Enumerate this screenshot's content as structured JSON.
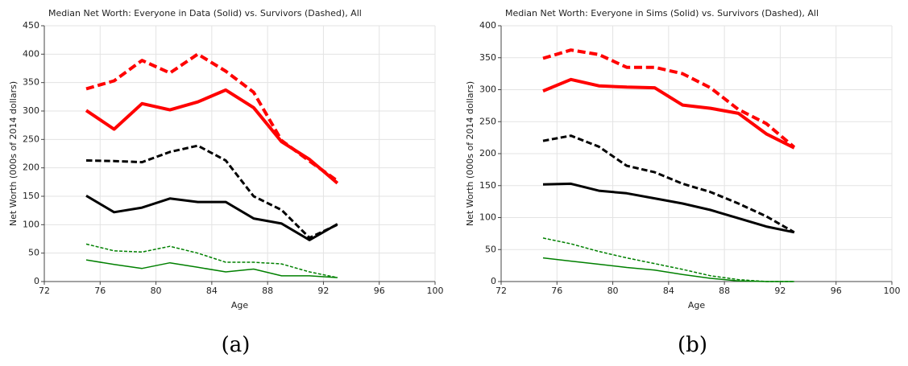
{
  "chart_data": [
    {
      "type": "line",
      "title": "Median Net Worth: Everyone in Data (Solid) vs. Survivors (Dashed), All",
      "xlabel": "Age",
      "ylabel": "Net Worth (000s of 2014 dollars)",
      "caption": "(a)",
      "x": [
        75,
        77,
        79,
        81,
        83,
        85,
        87,
        89,
        91,
        93
      ],
      "xlim": [
        72,
        100
      ],
      "xticks": [
        72,
        76,
        80,
        84,
        88,
        92,
        96,
        100
      ],
      "ylim": [
        0,
        450
      ],
      "yticks": [
        0,
        50,
        100,
        150,
        200,
        250,
        300,
        350,
        400,
        450
      ],
      "grid": true,
      "series": [
        {
          "color": "#ff0000",
          "dashed": false,
          "width": 4,
          "values": [
            301,
            268,
            313,
            302,
            316,
            337,
            306,
            246,
            215,
            173
          ]
        },
        {
          "color": "#ff0000",
          "dashed": true,
          "width": 4,
          "values": [
            339,
            353,
            389,
            367,
            400,
            370,
            333,
            248,
            212,
            177
          ]
        },
        {
          "color": "#000000",
          "dashed": false,
          "width": 3,
          "values": [
            151,
            122,
            130,
            146,
            140,
            140,
            111,
            102,
            73,
            101
          ]
        },
        {
          "color": "#000000",
          "dashed": true,
          "width": 3,
          "values": [
            213,
            212,
            210,
            228,
            239,
            213,
            150,
            126,
            77,
            100
          ]
        },
        {
          "color": "#008000",
          "dashed": false,
          "width": 1.5,
          "values": [
            38,
            30,
            23,
            33,
            25,
            17,
            22,
            10,
            10,
            7
          ]
        },
        {
          "color": "#008000",
          "dashed": true,
          "width": 1.5,
          "values": [
            66,
            54,
            52,
            62,
            50,
            34,
            34,
            31,
            17,
            7
          ]
        }
      ]
    },
    {
      "type": "line",
      "title": "Median Net Worth: Everyone in Sims (Solid) vs. Survivors (Dashed), All",
      "xlabel": "Age",
      "ylabel": "Net Worth (000s of 2014 dollars)",
      "caption": "(b)",
      "x": [
        75,
        77,
        79,
        81,
        83,
        85,
        87,
        89,
        91,
        93
      ],
      "xlim": [
        72,
        100
      ],
      "xticks": [
        72,
        76,
        80,
        84,
        88,
        92,
        96,
        100
      ],
      "ylim": [
        0,
        400
      ],
      "yticks": [
        0,
        50,
        100,
        150,
        200,
        250,
        300,
        350,
        400
      ],
      "grid": true,
      "series": [
        {
          "color": "#ff0000",
          "dashed": false,
          "width": 4,
          "values": [
            298,
            316,
            306,
            304,
            303,
            276,
            271,
            263,
            231,
            209
          ]
        },
        {
          "color": "#ff0000",
          "dashed": true,
          "width": 4,
          "values": [
            349,
            362,
            355,
            335,
            335,
            325,
            303,
            269,
            247,
            210
          ]
        },
        {
          "color": "#000000",
          "dashed": false,
          "width": 3,
          "values": [
            152,
            153,
            142,
            138,
            130,
            122,
            112,
            99,
            86,
            77
          ]
        },
        {
          "color": "#000000",
          "dashed": true,
          "width": 3,
          "values": [
            220,
            228,
            211,
            181,
            171,
            153,
            140,
            122,
            102,
            77
          ]
        },
        {
          "color": "#008000",
          "dashed": false,
          "width": 1.5,
          "values": [
            37,
            32,
            27,
            22,
            18,
            11,
            5,
            1,
            0,
            0
          ]
        },
        {
          "color": "#008000",
          "dashed": true,
          "width": 1.5,
          "values": [
            68,
            59,
            47,
            37,
            28,
            19,
            9,
            3,
            0,
            0
          ]
        }
      ]
    }
  ]
}
